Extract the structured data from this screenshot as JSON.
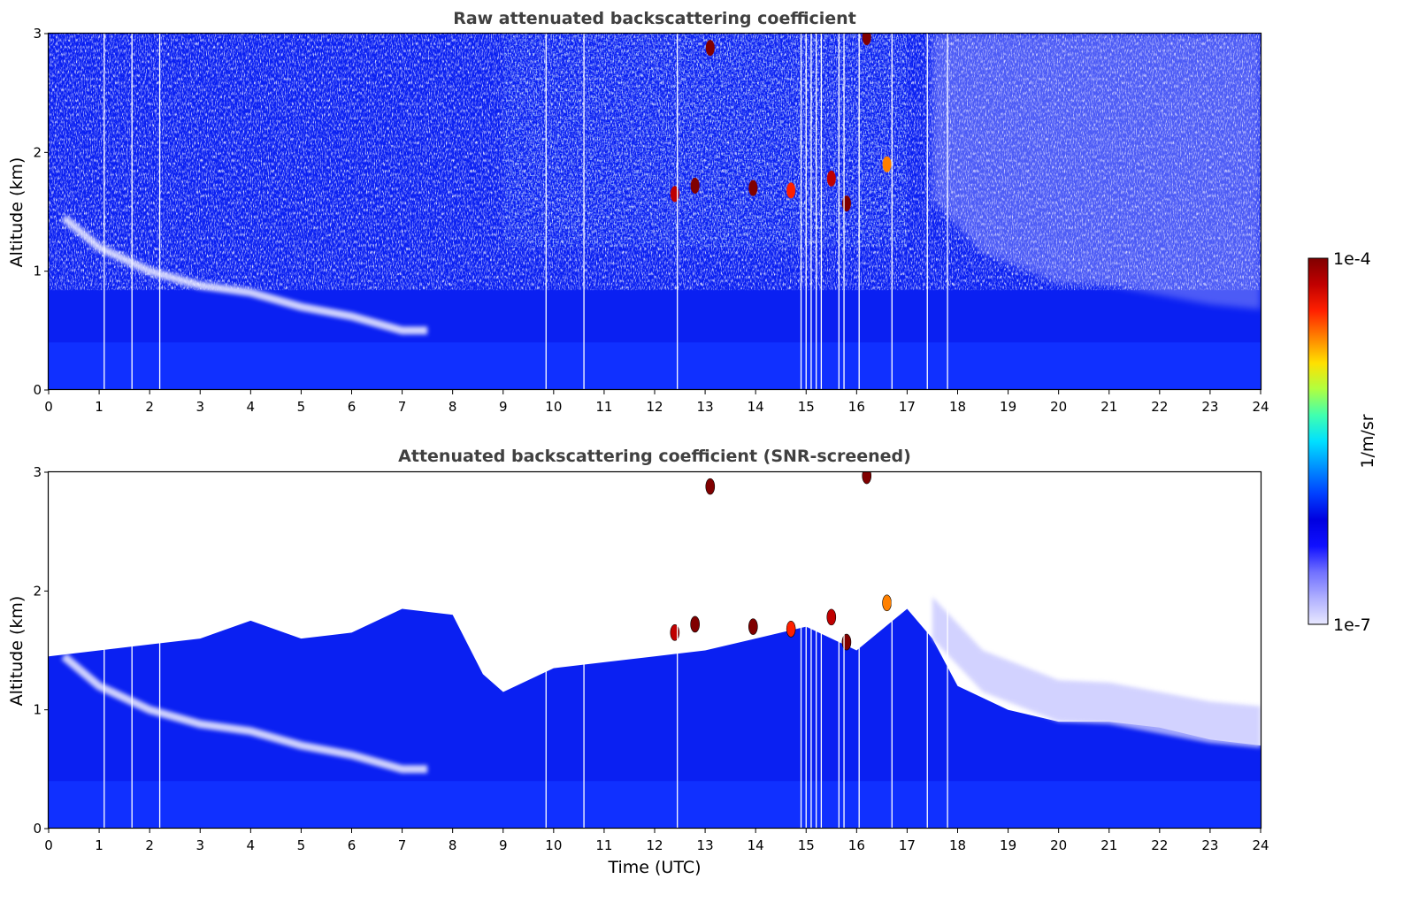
{
  "chart_data": [
    {
      "type": "heatmap",
      "title": "Raw attenuated backscattering coefficient",
      "xlabel": "",
      "ylabel": "Altitude (km)",
      "xlim": [
        0,
        24
      ],
      "ylim": [
        0,
        3
      ],
      "x_ticks": [
        "0",
        "1",
        "2",
        "3",
        "4",
        "5",
        "6",
        "7",
        "8",
        "9",
        "10",
        "11",
        "12",
        "13",
        "14",
        "15",
        "16",
        "17",
        "18",
        "19",
        "20",
        "21",
        "22",
        "23",
        "24"
      ],
      "y_ticks": [
        "0",
        "1",
        "2",
        "3"
      ],
      "boundary_layer_top_km": [
        [
          0.3,
          1.45
        ],
        [
          1,
          1.2
        ],
        [
          2,
          1.0
        ],
        [
          3,
          0.88
        ],
        [
          4,
          0.82
        ],
        [
          5,
          0.7
        ],
        [
          6,
          0.62
        ],
        [
          7,
          0.5
        ],
        [
          7.5,
          0.5
        ]
      ],
      "residual_layer_top_km": [
        [
          17.5,
          1.6
        ],
        [
          18.5,
          1.15
        ],
        [
          20,
          0.9
        ],
        [
          21,
          0.88
        ],
        [
          22,
          0.8
        ],
        [
          23,
          0.72
        ],
        [
          24,
          0.68
        ]
      ],
      "clouds": [
        {
          "t": 12.4,
          "alt_km": 1.65,
          "level": 0.95
        },
        {
          "t": 12.8,
          "alt_km": 1.72,
          "level": 1.0
        },
        {
          "t": 13.1,
          "alt_km": 2.88,
          "level": 1.0
        },
        {
          "t": 13.95,
          "alt_km": 1.7,
          "level": 1.0
        },
        {
          "t": 14.7,
          "alt_km": 1.68,
          "level": 0.85
        },
        {
          "t": 15.5,
          "alt_km": 1.78,
          "level": 0.9
        },
        {
          "t": 15.8,
          "alt_km": 1.57,
          "level": 1.0
        },
        {
          "t": 16.2,
          "alt_km": 2.97,
          "level": 1.0
        },
        {
          "t": 16.6,
          "alt_km": 1.9,
          "level": 0.8
        }
      ],
      "gap_times": [
        1.1,
        1.65,
        2.2,
        9.85,
        10.6,
        12.45,
        14.9,
        15.0,
        15.1,
        15.2,
        15.3,
        15.65,
        15.75,
        16.05,
        16.7,
        17.4,
        17.8
      ]
    },
    {
      "type": "heatmap",
      "title": "Attenuated backscattering coefficient (SNR-screened)",
      "xlabel": "Time (UTC)",
      "ylabel": "Altitude (km)",
      "xlim": [
        0,
        24
      ],
      "ylim": [
        0,
        3
      ],
      "x_ticks": [
        "0",
        "1",
        "2",
        "3",
        "4",
        "5",
        "6",
        "7",
        "8",
        "9",
        "10",
        "11",
        "12",
        "13",
        "14",
        "15",
        "16",
        "17",
        "18",
        "19",
        "20",
        "21",
        "22",
        "23",
        "24"
      ],
      "y_ticks": [
        "0",
        "1",
        "2",
        "3"
      ],
      "screen_top_km": [
        [
          0,
          1.45
        ],
        [
          2,
          1.55
        ],
        [
          3,
          1.6
        ],
        [
          4,
          1.75
        ],
        [
          5,
          1.6
        ],
        [
          6,
          1.65
        ],
        [
          7,
          1.85
        ],
        [
          8,
          1.8
        ],
        [
          8.6,
          1.3
        ],
        [
          9,
          1.15
        ],
        [
          10,
          1.35
        ],
        [
          11,
          1.4
        ],
        [
          12,
          1.45
        ],
        [
          13,
          1.5
        ],
        [
          14,
          1.6
        ],
        [
          15,
          1.7
        ],
        [
          16,
          1.5
        ],
        [
          17,
          1.85
        ],
        [
          17.5,
          1.6
        ],
        [
          18,
          1.2
        ],
        [
          19,
          1.0
        ],
        [
          20,
          0.9
        ],
        [
          21,
          0.9
        ],
        [
          22,
          0.85
        ],
        [
          23,
          0.75
        ],
        [
          24,
          0.7
        ]
      ]
    }
  ],
  "colorbar": {
    "max_label": "1e-4",
    "min_label": "1e-7",
    "unit_label": "1/m/sr",
    "colors": [
      "#e8e8ff",
      "#b0b0ff",
      "#7070ff",
      "#1010ff",
      "#0000e0",
      "#0040ff",
      "#0090ff",
      "#00e0ff",
      "#40ffb0",
      "#b0ff40",
      "#ffe000",
      "#ff8000",
      "#ff2000",
      "#c00000",
      "#800000"
    ]
  }
}
